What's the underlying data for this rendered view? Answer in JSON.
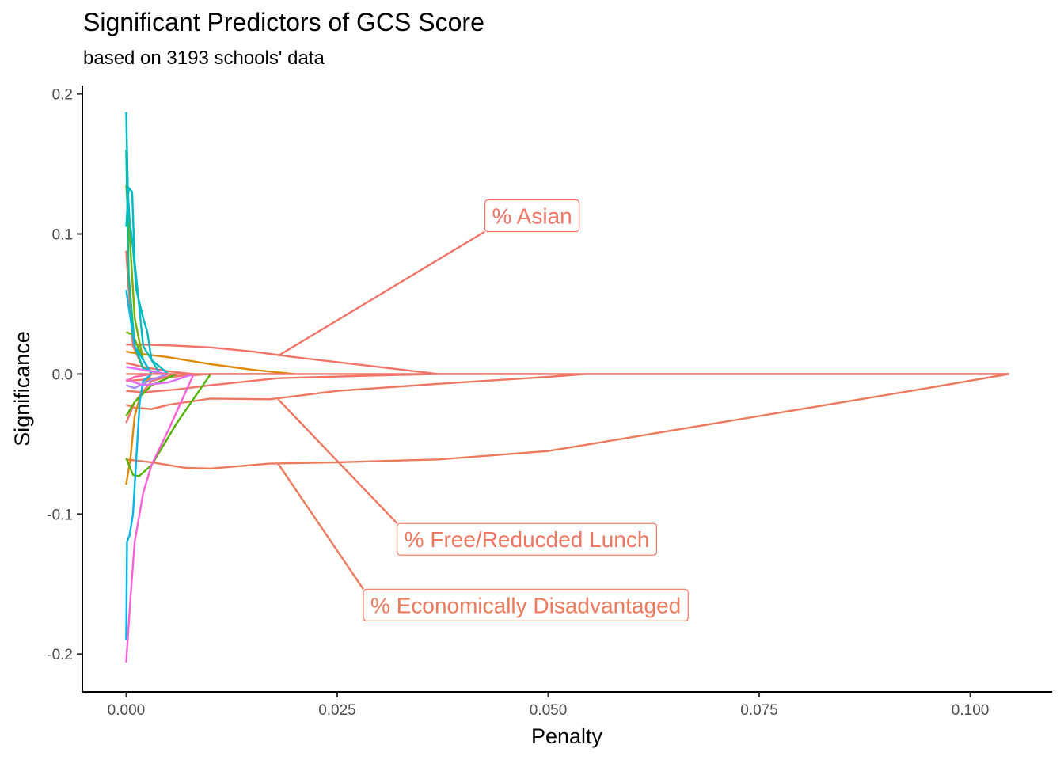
{
  "chart_data": {
    "type": "line",
    "title": "Significant Predictors of GCS Score",
    "subtitle": "based on 3193 schools' data",
    "xlabel": "Penalty",
    "ylabel": "Significance",
    "xlim": [
      -0.0052,
      0.1097
    ],
    "ylim": [
      -0.227,
      0.206
    ],
    "x_ticks": [
      0.0,
      0.025,
      0.05,
      0.075,
      0.1
    ],
    "x_tick_labels": [
      "0.000",
      "0.025",
      "0.050",
      "0.075",
      "0.100"
    ],
    "y_ticks": [
      -0.2,
      -0.1,
      0.0,
      0.1,
      0.2
    ],
    "y_tick_labels": [
      "-0.2",
      "-0.1",
      "0.0",
      "0.1",
      "0.2"
    ],
    "grid": false,
    "legend": "none",
    "series": [
      {
        "name": "% Asian",
        "color": "#F07468",
        "x": [
          0,
          0.0005,
          0.002,
          0.005,
          0.01,
          0.015,
          0.02,
          0.03,
          0.037,
          0.05
        ],
        "y": [
          0.021,
          0.021,
          0.021,
          0.0205,
          0.019,
          0.016,
          0.012,
          0.005,
          0.0,
          0.0
        ]
      },
      {
        "name": "% Free/Reducded Lunch",
        "color": "#EE7761",
        "x": [
          0,
          0.001,
          0.003,
          0.005,
          0.01,
          0.017,
          0.025,
          0.037,
          0.05,
          0.0545,
          0.06,
          0.07,
          0.08,
          0.09,
          0.1,
          0.1046
        ],
        "y": [
          -0.022,
          -0.024,
          -0.025,
          -0.022,
          -0.0175,
          -0.018,
          -0.012,
          -0.007,
          -0.002,
          0.0,
          0.0,
          0.0,
          0.0,
          0.0,
          0.0,
          0.0
        ]
      },
      {
        "name": "% Economically Disadvantaged",
        "color": "#EC7A5C",
        "x": [
          0,
          0.003,
          0.007,
          0.01,
          0.017,
          0.025,
          0.037,
          0.05,
          0.055,
          0.065,
          0.075,
          0.085,
          0.095,
          0.1046
        ],
        "y": [
          -0.061,
          -0.063,
          -0.067,
          -0.0675,
          -0.064,
          -0.063,
          -0.061,
          -0.055,
          -0.05,
          -0.04,
          -0.03,
          -0.02,
          -0.01,
          0.0
        ]
      },
      {
        "name": "",
        "color": "#F07468",
        "x": [
          0,
          0.002,
          0.006,
          0.01,
          0.018,
          0.03,
          0.037
        ],
        "y": [
          -0.012,
          -0.013,
          -0.011,
          -0.008,
          -0.003,
          -0.001,
          0.0
        ]
      },
      {
        "name": "",
        "color": "#F07468",
        "x": [
          0,
          0.002,
          0.005,
          0.01,
          0.02
        ],
        "y": [
          -0.005,
          -0.004,
          -0.002,
          0.0,
          0.0
        ]
      },
      {
        "name": "",
        "color": "#F07468",
        "x": [
          0,
          0.002,
          0.005,
          0.008
        ],
        "y": [
          0.008,
          0.005,
          0.002,
          0.0
        ]
      },
      {
        "name": "",
        "color": "#F07468",
        "x": [
          0,
          0.001,
          0.003,
          0.006
        ],
        "y": [
          -0.035,
          -0.02,
          -0.005,
          0.0
        ]
      },
      {
        "name": "",
        "color": "#F07468",
        "x": [
          0,
          0.0003,
          0.0008,
          0.002,
          0.004
        ],
        "y": [
          0.088,
          0.06,
          0.02,
          0.004,
          0.0
        ]
      },
      {
        "name": "",
        "color": "#DD8A0B",
        "x": [
          0,
          0.001,
          0.005,
          0.01,
          0.015,
          0.02
        ],
        "y": [
          0.016,
          0.015,
          0.012,
          0.007,
          0.003,
          0.0
        ]
      },
      {
        "name": "",
        "color": "#DD8A0B",
        "x": [
          0,
          0.0005,
          0.001,
          0.002,
          0.003
        ],
        "y": [
          -0.079,
          -0.06,
          -0.03,
          -0.008,
          0.0
        ]
      },
      {
        "name": "",
        "color": "#7CAE00",
        "x": [
          0,
          0.0004,
          0.001,
          0.002,
          0.003
        ],
        "y": [
          0.135,
          0.1,
          0.04,
          0.01,
          0.0
        ]
      },
      {
        "name": "",
        "color": "#7CAE00",
        "x": [
          0,
          0.0008,
          0.002,
          0.003
        ],
        "y": [
          0.03,
          0.028,
          0.01,
          0.0
        ]
      },
      {
        "name": "",
        "color": "#53B400",
        "x": [
          0,
          0.0008,
          0.0015,
          0.003,
          0.006,
          0.01
        ],
        "y": [
          -0.06,
          -0.072,
          -0.073,
          -0.065,
          -0.035,
          0.0
        ]
      },
      {
        "name": "",
        "color": "#53B400",
        "x": [
          0,
          0.001,
          0.003,
          0.006
        ],
        "y": [
          -0.03,
          -0.02,
          -0.008,
          0.0
        ]
      },
      {
        "name": "",
        "color": "#00C094",
        "x": [
          0,
          0.0003,
          0.001,
          0.002,
          0.004
        ],
        "y": [
          0.16,
          0.07,
          0.02,
          0.004,
          0.0
        ]
      },
      {
        "name": "",
        "color": "#00BAC2",
        "x": [
          0,
          0.0002,
          0.0004,
          0.0008,
          0.0012,
          0.002,
          0.0025,
          0.003,
          0.005
        ],
        "y": [
          0.187,
          0.13,
          0.11,
          0.09,
          0.06,
          0.04,
          0.03,
          0.01,
          0.0
        ]
      },
      {
        "name": "",
        "color": "#00BAC2",
        "x": [
          0,
          0.0003,
          0.0007,
          0.001,
          0.002,
          0.004
        ],
        "y": [
          0.105,
          0.133,
          0.13,
          0.08,
          0.02,
          0.0
        ]
      },
      {
        "name": "",
        "color": "#00B6EB",
        "x": [
          0,
          0.0001,
          0.0004,
          0.0008,
          0.0012,
          0.0016,
          0.002,
          0.003
        ],
        "y": [
          -0.19,
          -0.12,
          -0.115,
          -0.1,
          -0.06,
          -0.02,
          -0.005,
          0.0
        ]
      },
      {
        "name": "",
        "color": "#00B6EB",
        "x": [
          0,
          0.001,
          0.003
        ],
        "y": [
          0.06,
          0.02,
          0.0
        ]
      },
      {
        "name": "",
        "color": "#A58AFF",
        "x": [
          0,
          0.001,
          0.003,
          0.005
        ],
        "y": [
          -0.008,
          -0.01,
          -0.004,
          0.0
        ]
      },
      {
        "name": "",
        "color": "#DF70F8",
        "x": [
          0,
          0.002,
          0.005,
          0.008
        ],
        "y": [
          -0.004,
          -0.008,
          -0.006,
          0.0
        ]
      },
      {
        "name": "",
        "color": "#DF70F8",
        "x": [
          0,
          0.001,
          0.003,
          0.005
        ],
        "y": [
          0.005,
          0.004,
          0.002,
          0.0
        ]
      },
      {
        "name": "",
        "color": "#FB61D7",
        "x": [
          0,
          0.0005,
          0.001,
          0.002,
          0.003,
          0.005,
          0.008
        ],
        "y": [
          -0.206,
          -0.16,
          -0.12,
          -0.085,
          -0.065,
          -0.04,
          0.0
        ]
      },
      {
        "name": "",
        "color": "#FF66A8",
        "x": [
          0,
          0.001,
          0.003
        ],
        "y": [
          -0.005,
          -0.002,
          0.0
        ]
      },
      {
        "name": "",
        "color": "#F07468",
        "x": [
          0,
          0.1046
        ],
        "y": [
          0.0,
          0.0
        ]
      }
    ],
    "annotations": [
      {
        "text": "% Asian",
        "color": "#F07468",
        "target_series": "% Asian",
        "point": [
          0.018,
          0.013
        ],
        "label_at": [
          0.0425,
          0.113
        ]
      },
      {
        "text": "% Free/Reducded Lunch",
        "color": "#EE7761",
        "target_series": "% Free/Reducded Lunch",
        "point": [
          0.018,
          -0.018
        ],
        "label_at": [
          0.0321,
          -0.118
        ]
      },
      {
        "text": "% Economically Disadvantaged",
        "color": "#EC7A5C",
        "target_series": "% Economically Disadvantaged",
        "point": [
          0.018,
          -0.064
        ],
        "label_at": [
          0.0281,
          -0.165
        ]
      }
    ]
  }
}
